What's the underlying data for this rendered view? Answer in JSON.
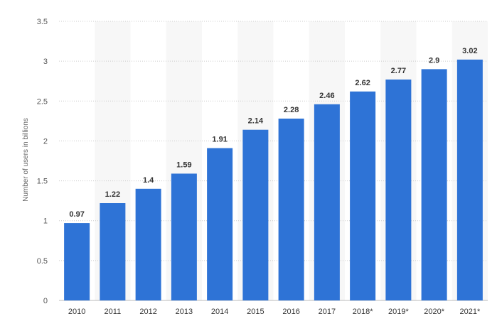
{
  "chart_data": {
    "type": "bar",
    "categories": [
      "2010",
      "2011",
      "2012",
      "2013",
      "2014",
      "2015",
      "2016",
      "2017",
      "2018*",
      "2019*",
      "2020*",
      "2021*"
    ],
    "values": [
      0.97,
      1.22,
      1.4,
      1.59,
      1.91,
      2.14,
      2.28,
      2.46,
      2.62,
      2.77,
      2.9,
      3.02
    ],
    "value_labels": [
      "0.97",
      "1.22",
      "1.4",
      "1.59",
      "1.91",
      "2.14",
      "2.28",
      "2.46",
      "2.62",
      "2.77",
      "2.9",
      "3.02"
    ],
    "ylabel": "Number of users in billions",
    "ylim": [
      0,
      3.5
    ],
    "yticks": [
      0,
      0.5,
      1,
      1.5,
      2,
      2.5,
      3,
      3.5
    ],
    "ytick_labels": [
      "0",
      "0.5",
      "1",
      "1.5",
      "2",
      "2.5",
      "3",
      "3.5"
    ],
    "grid": true,
    "bar_color": "#2e73d6",
    "alt_band_color": "#f7f7f7",
    "grid_color": "#cccccc"
  }
}
